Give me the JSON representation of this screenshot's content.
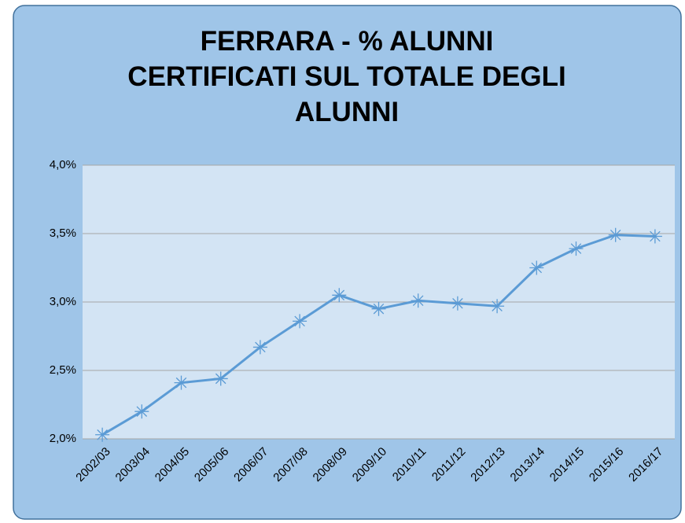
{
  "chart_data": {
    "type": "line",
    "title": "FERRARA - % ALUNNI CERTIFICATI SUL TOTALE DEGLI ALUNNI",
    "categories": [
      "2002/03",
      "2003/04",
      "2004/05",
      "2005/06",
      "2006/07",
      "2007/08",
      "2008/09",
      "2009/10",
      "2010/11",
      "2011/12",
      "2012/13",
      "2013/14",
      "2014/15",
      "2015/16",
      "2016/17"
    ],
    "series": [
      {
        "color": "#5b9bd5",
        "values": [
          2.03,
          2.2,
          2.41,
          2.44,
          2.67,
          2.86,
          3.05,
          2.95,
          3.01,
          2.99,
          2.97,
          3.25,
          3.39,
          3.49,
          3.48
        ]
      }
    ],
    "ylim": [
      2.0,
      4.0
    ],
    "yticks": [
      {
        "value": 2.0,
        "label": "2,0%"
      },
      {
        "value": 2.5,
        "label": "2,5%"
      },
      {
        "value": 3.0,
        "label": "3,0%"
      },
      {
        "value": 3.5,
        "label": "3,5%"
      },
      {
        "value": 4.0,
        "label": "4,0%"
      }
    ],
    "grid": true
  }
}
